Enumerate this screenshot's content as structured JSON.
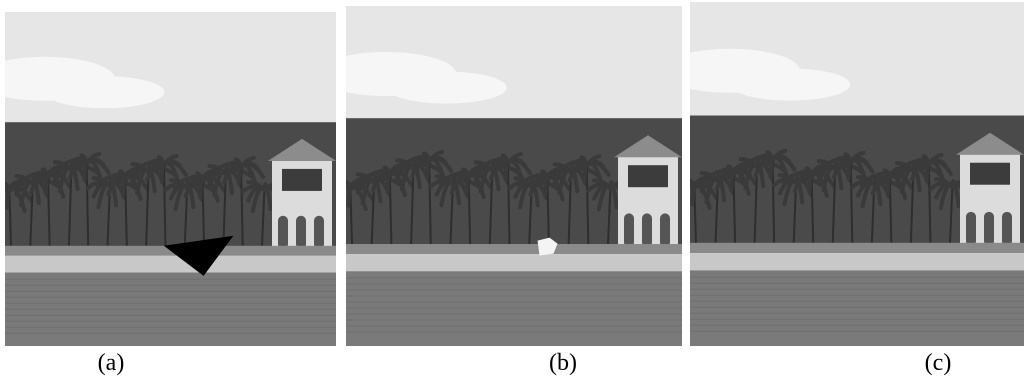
{
  "figure": {
    "panels": [
      {
        "label": "(a)",
        "variant": "occluded-black-triangle"
      },
      {
        "label": "(b)",
        "variant": "inpainted-white-artifact"
      },
      {
        "label": "(c)",
        "variant": "restored"
      }
    ]
  },
  "colors": {
    "sky": "#e6e6e6",
    "cloud": "#f6f6f6",
    "palms": "#3a3a3a",
    "ground": "#8a8a8a",
    "promenade": "#c8c8c8",
    "water": "#7a7a7a",
    "building": "#dcdcdc"
  }
}
